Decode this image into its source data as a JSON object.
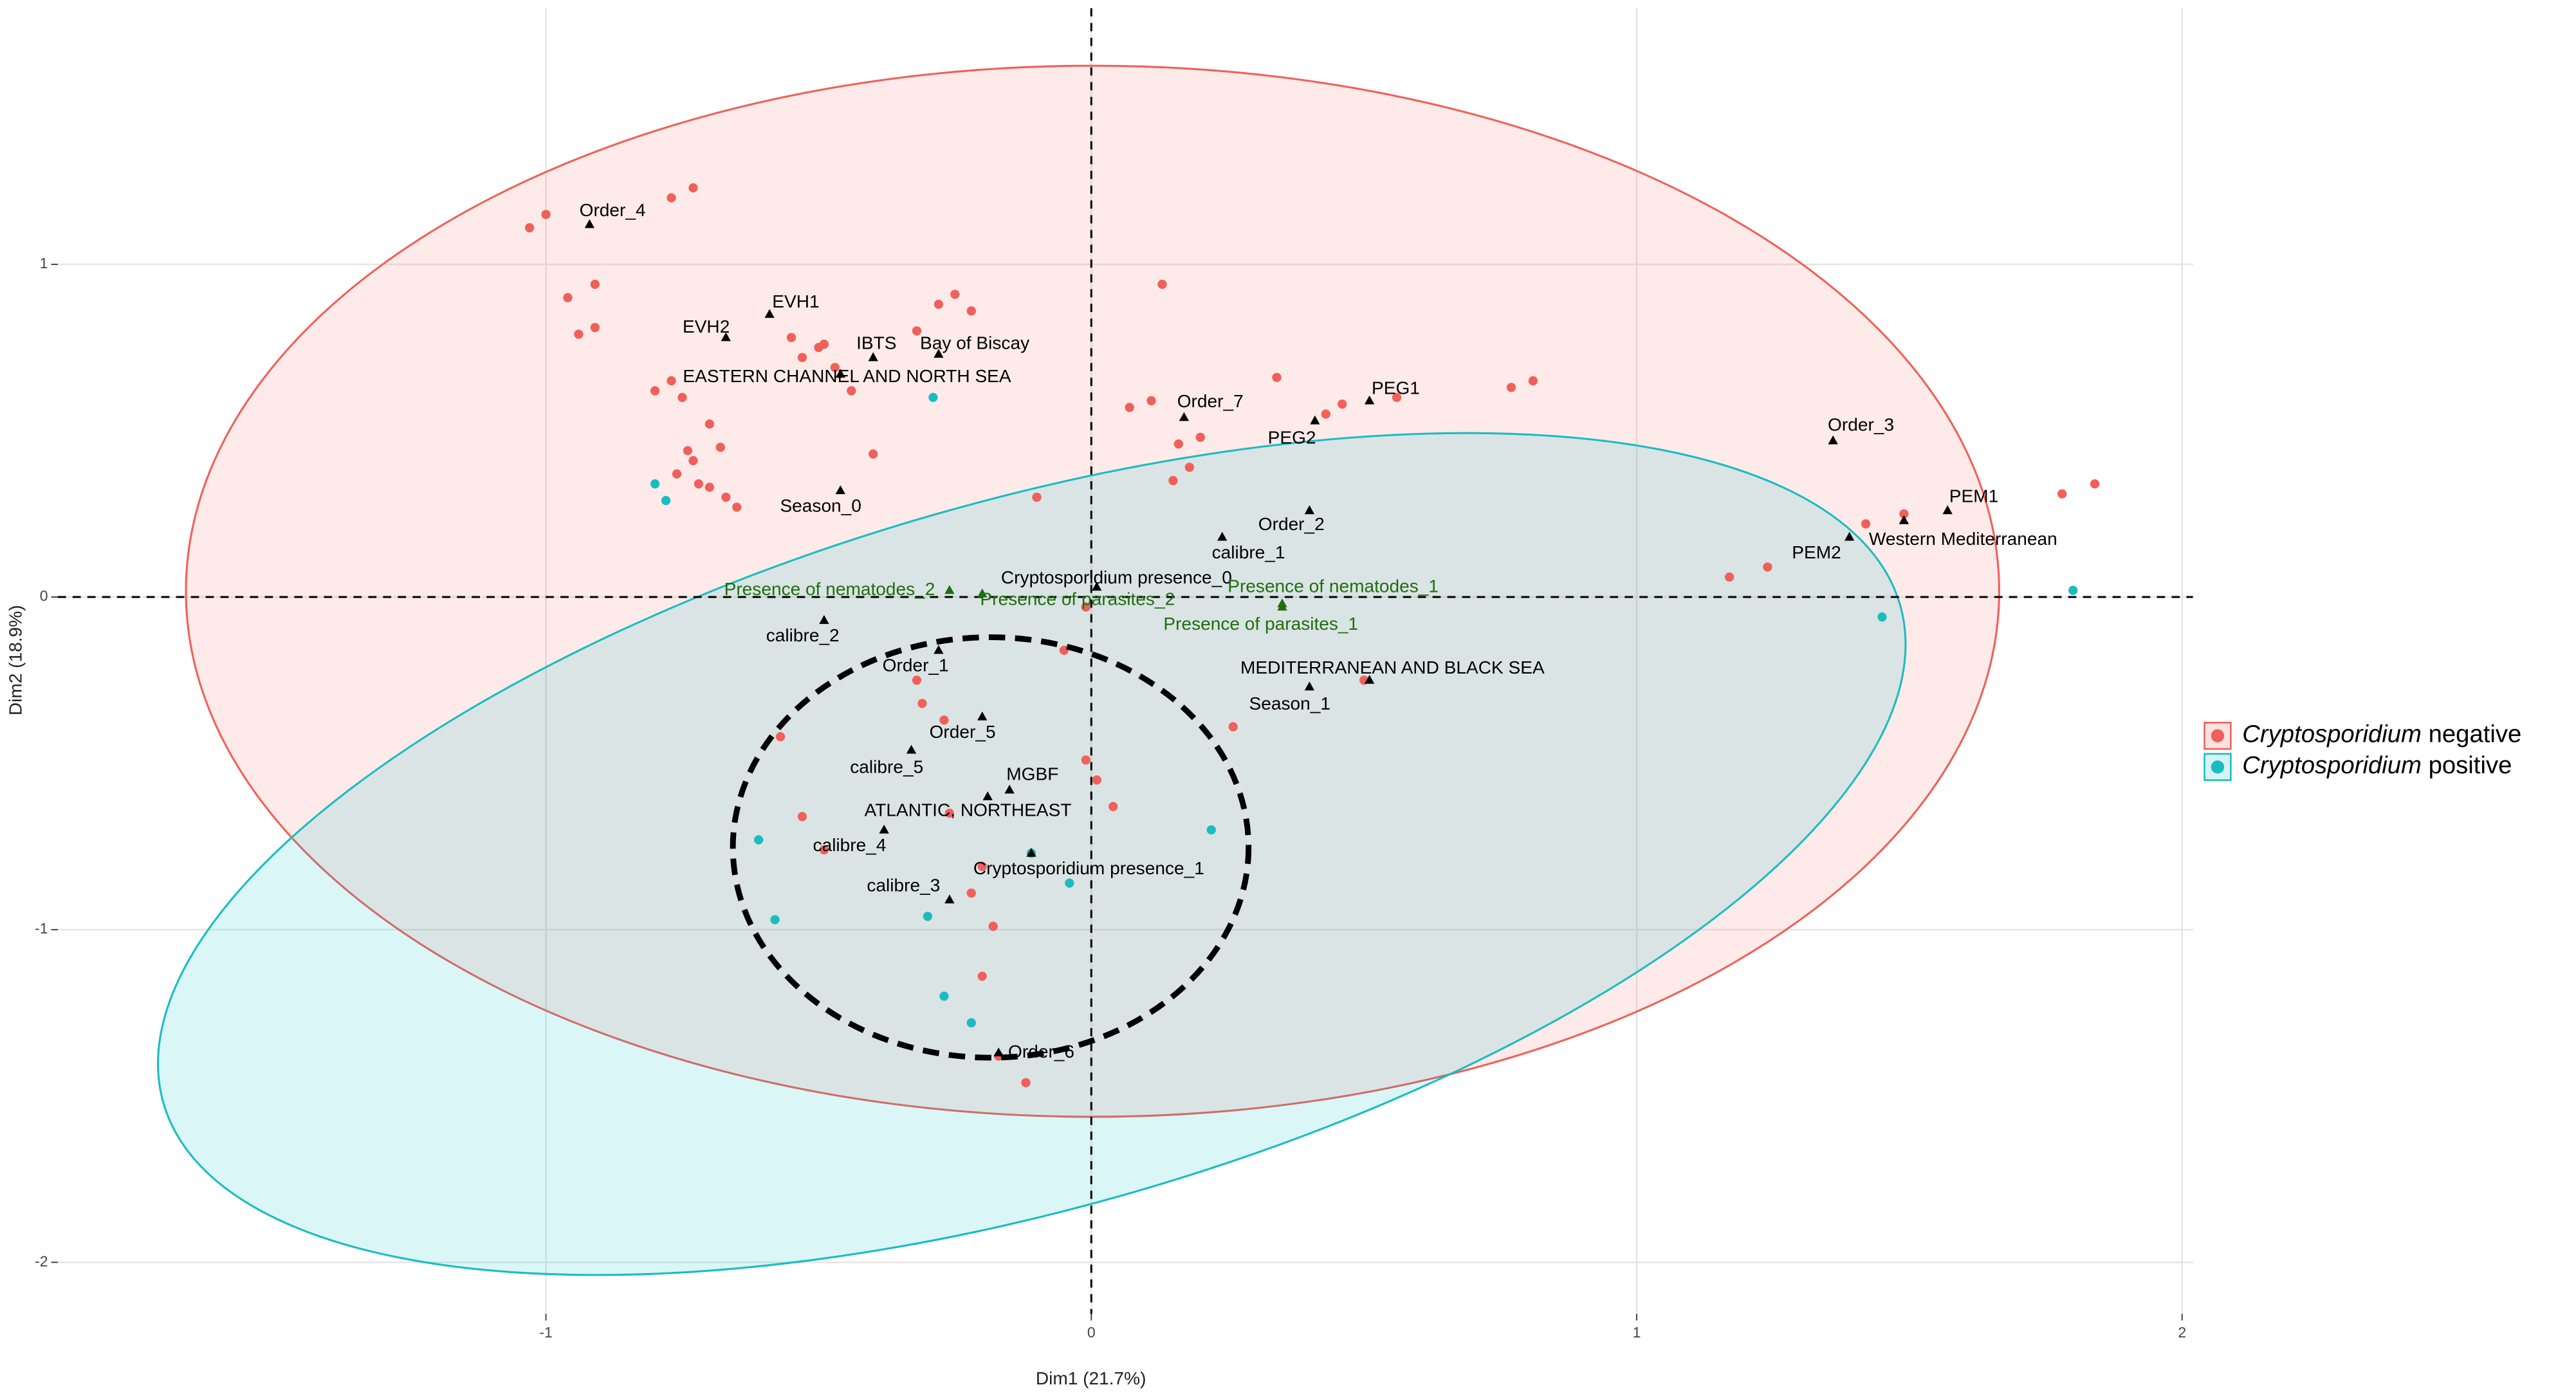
{
  "chart_data": {
    "type": "scatter",
    "x_label": "Dim1 (21.7%)",
    "y_label": "Dim2 (18.9%)",
    "xlim": [
      -1.895,
      2.02
    ],
    "ylim": [
      -2.155,
      1.77
    ],
    "xticks": [
      -1,
      0,
      1,
      2
    ],
    "yticks": [
      -2,
      -1,
      0,
      1
    ],
    "grid": true,
    "legend": "right",
    "series": [
      {
        "name": "Cryptosporidium negative",
        "color": "#f0605a",
        "x": [
          -1.03,
          -1.0,
          -0.96,
          -0.94,
          -0.91,
          -0.91,
          -0.77,
          -0.73,
          -0.77,
          -0.8,
          -0.75,
          -0.74,
          -0.73,
          -0.7,
          -0.68,
          -0.76,
          -0.72,
          -0.7,
          -0.67,
          -0.65,
          -0.55,
          -0.53,
          -0.5,
          -0.49,
          -0.47,
          -0.44,
          -0.4,
          -0.28,
          -0.25,
          -0.22,
          -0.32,
          -0.1,
          0.13,
          0.07,
          0.11,
          0.2,
          0.34,
          0.43,
          0.46,
          0.56,
          0.77,
          0.81,
          0.16,
          0.18,
          0.15,
          1.17,
          1.24,
          1.42,
          1.49,
          1.78,
          1.84,
          -0.05,
          -0.01,
          -0.57,
          -0.49,
          -0.53,
          -0.32,
          -0.31,
          -0.27,
          -0.26,
          -0.22,
          -0.2,
          -0.18,
          -0.2,
          -0.17,
          -0.12,
          -0.01,
          0.01,
          0.04,
          0.26,
          0.5
        ],
        "y": [
          1.11,
          1.15,
          0.9,
          0.79,
          0.94,
          0.81,
          1.2,
          1.23,
          0.65,
          0.62,
          0.6,
          0.44,
          0.41,
          0.52,
          0.45,
          0.37,
          0.34,
          0.33,
          0.3,
          0.27,
          0.78,
          0.72,
          0.75,
          0.76,
          0.69,
          0.62,
          0.43,
          0.88,
          0.91,
          0.86,
          0.8,
          0.3,
          0.94,
          0.57,
          0.59,
          0.48,
          0.66,
          0.55,
          0.58,
          0.6,
          0.63,
          0.65,
          0.46,
          0.39,
          0.35,
          0.06,
          0.09,
          0.22,
          0.25,
          0.31,
          0.34,
          -0.16,
          -0.03,
          -0.42,
          -0.76,
          -0.66,
          -0.25,
          -0.32,
          -0.37,
          -0.65,
          -0.89,
          -0.81,
          -0.99,
          -1.14,
          -1.38,
          -1.46,
          -0.49,
          -0.55,
          -0.63,
          -0.39,
          -0.25
        ]
      },
      {
        "name": "Cryptosporidium positive",
        "color": "#1bbcc0",
        "x": [
          -0.29,
          -0.8,
          -0.78,
          -0.61,
          -0.58,
          -0.3,
          -0.27,
          -0.22,
          -0.11,
          -0.04,
          0.22,
          1.45,
          1.8
        ],
        "y": [
          0.6,
          0.34,
          0.29,
          -0.73,
          -0.97,
          -0.96,
          -1.2,
          -1.28,
          -0.77,
          -0.86,
          -0.7,
          -0.06,
          0.02
        ]
      }
    ],
    "variables": {
      "color": "#000000",
      "labels": [
        "Order_4",
        "EVH1",
        "EVH2",
        "IBTS",
        "Bay of Biscay",
        "EASTERN CHANNEL AND NORTH SEA",
        "Season_0",
        "Order_7",
        "PEG1",
        "PEG2",
        "Order_3",
        "PEM1",
        "Western Mediterranean",
        "PEM2",
        "Order_2",
        "calibre_1",
        "Cryptosporidium presence_0",
        "calibre_2",
        "Order_1",
        "MEDITERRANEAN AND BLACK SEA",
        "Season_1",
        "Order_5",
        "calibre_5",
        "MGBF",
        "ATLANTIC, NORTHEAST",
        "calibre_4",
        "Cryptosporidium presence_1",
        "calibre_3",
        "Order_6"
      ],
      "x": [
        -0.92,
        -0.59,
        -0.67,
        -0.4,
        -0.28,
        -0.46,
        -0.46,
        0.17,
        0.51,
        0.41,
        1.36,
        1.57,
        1.49,
        1.39,
        0.4,
        0.24,
        0.01,
        -0.49,
        -0.28,
        0.51,
        0.4,
        -0.2,
        -0.33,
        -0.15,
        -0.19,
        -0.38,
        -0.11,
        -0.26,
        -0.17
      ],
      "y": [
        1.12,
        0.85,
        0.78,
        0.72,
        0.73,
        0.67,
        0.32,
        0.54,
        0.59,
        0.53,
        0.47,
        0.26,
        0.23,
        0.18,
        0.26,
        0.18,
        0.03,
        -0.07,
        -0.16,
        -0.25,
        -0.27,
        -0.36,
        -0.46,
        -0.58,
        -0.6,
        -0.7,
        -0.77,
        -0.91,
        -1.37
      ]
    },
    "supplementary": {
      "color": "#1f6e0f",
      "labels": [
        "Presence of nematodes_2",
        "Presence of parasites_2",
        "Presence of nematodes_1",
        "Presence of parasites_1"
      ],
      "x": [
        -0.26,
        -0.2,
        0.35,
        0.35
      ],
      "y": [
        0.02,
        0.01,
        -0.02,
        -0.03
      ]
    }
  }
}
